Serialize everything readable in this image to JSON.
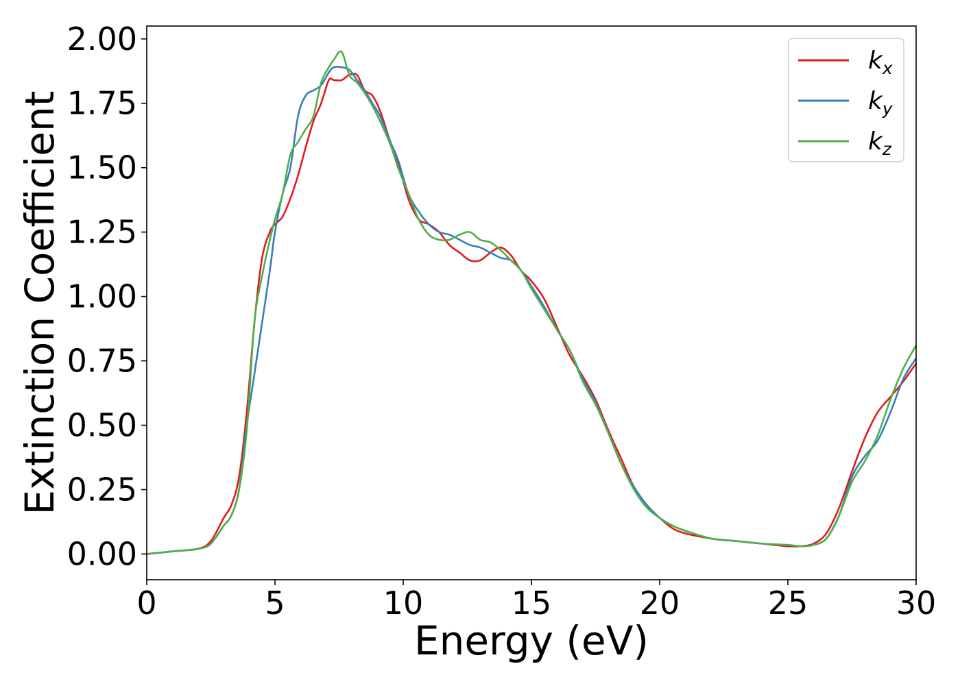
{
  "chart_data": {
    "type": "line",
    "title": "",
    "xlabel": "Energy (eV)",
    "ylabel": "Extinction Coefficient",
    "xlim": [
      0,
      30
    ],
    "ylim": [
      -0.1,
      2.05
    ],
    "x_ticks": [
      "0",
      "5",
      "10",
      "15",
      "20",
      "25",
      "30"
    ],
    "y_ticks": [
      "0.00",
      "0.25",
      "0.50",
      "0.75",
      "1.00",
      "1.25",
      "1.50",
      "1.75",
      "2.00"
    ],
    "grid": false,
    "legend_position": "top-right",
    "series": [
      {
        "name": "k",
        "subscript": "x",
        "color": "#e41a1c",
        "x": [
          0,
          1,
          2,
          2.5,
          3,
          3.3,
          3.6,
          3.9,
          4.2,
          4.5,
          4.8,
          5,
          5.3,
          5.6,
          5.9,
          6.2,
          6.5,
          6.8,
          7.1,
          7.3,
          7.6,
          7.9,
          8.2,
          8.5,
          8.8,
          9.1,
          9.5,
          9.8,
          10.2,
          10.6,
          11,
          11.4,
          11.8,
          12.2,
          12.6,
          13,
          13.4,
          13.8,
          14.2,
          14.6,
          15,
          15.5,
          16,
          16.5,
          17,
          17.5,
          18,
          18.5,
          19,
          19.5,
          20,
          20.5,
          21,
          22,
          23,
          24,
          25,
          25.5,
          26,
          26.5,
          27,
          27.5,
          28,
          28.5,
          29,
          29.5,
          30
        ],
        "y": [
          0,
          0.01,
          0.02,
          0.05,
          0.14,
          0.19,
          0.3,
          0.55,
          0.9,
          1.15,
          1.25,
          1.28,
          1.31,
          1.38,
          1.47,
          1.58,
          1.68,
          1.75,
          1.84,
          1.84,
          1.84,
          1.86,
          1.86,
          1.8,
          1.78,
          1.72,
          1.6,
          1.52,
          1.38,
          1.3,
          1.28,
          1.25,
          1.2,
          1.17,
          1.14,
          1.14,
          1.17,
          1.19,
          1.16,
          1.1,
          1.06,
          0.99,
          0.88,
          0.77,
          0.69,
          0.6,
          0.48,
          0.37,
          0.26,
          0.19,
          0.14,
          0.1,
          0.08,
          0.06,
          0.05,
          0.04,
          0.03,
          0.03,
          0.04,
          0.08,
          0.18,
          0.32,
          0.45,
          0.55,
          0.61,
          0.67,
          0.74
        ]
      },
      {
        "name": "k",
        "subscript": "y",
        "color": "#377eb8",
        "x": [
          0,
          1,
          2,
          2.5,
          3,
          3.3,
          3.6,
          3.9,
          4.2,
          4.5,
          4.8,
          5,
          5.3,
          5.6,
          5.9,
          6.2,
          6.5,
          6.8,
          7.1,
          7.3,
          7.6,
          7.9,
          8.2,
          8.5,
          8.8,
          9.1,
          9.5,
          9.8,
          10.2,
          10.6,
          11,
          11.4,
          11.8,
          12.2,
          12.6,
          13,
          13.4,
          13.8,
          14.2,
          14.6,
          15,
          15.5,
          16,
          16.5,
          17,
          17.5,
          18,
          18.5,
          19,
          19.5,
          20,
          20.5,
          21,
          22,
          23,
          24,
          25,
          25.5,
          26,
          26.5,
          27,
          27.5,
          28,
          28.5,
          29,
          29.5,
          30
        ],
        "y": [
          0,
          0.01,
          0.02,
          0.04,
          0.11,
          0.15,
          0.25,
          0.5,
          0.7,
          0.9,
          1.1,
          1.25,
          1.4,
          1.5,
          1.7,
          1.78,
          1.8,
          1.82,
          1.87,
          1.89,
          1.89,
          1.88,
          1.84,
          1.8,
          1.75,
          1.7,
          1.6,
          1.53,
          1.4,
          1.33,
          1.28,
          1.25,
          1.24,
          1.22,
          1.2,
          1.19,
          1.17,
          1.15,
          1.14,
          1.1,
          1.04,
          0.96,
          0.87,
          0.79,
          0.68,
          0.59,
          0.47,
          0.35,
          0.26,
          0.19,
          0.14,
          0.11,
          0.09,
          0.06,
          0.05,
          0.04,
          0.035,
          0.03,
          0.035,
          0.06,
          0.15,
          0.3,
          0.38,
          0.44,
          0.55,
          0.68,
          0.76
        ]
      },
      {
        "name": "k",
        "subscript": "z",
        "color": "#4daf4a",
        "x": [
          0,
          1,
          2,
          2.5,
          3,
          3.3,
          3.6,
          3.9,
          4.2,
          4.5,
          4.8,
          5,
          5.3,
          5.6,
          5.9,
          6.2,
          6.5,
          6.8,
          7.1,
          7.3,
          7.6,
          7.9,
          8.2,
          8.5,
          8.8,
          9.1,
          9.5,
          9.8,
          10.2,
          10.6,
          11,
          11.4,
          11.8,
          12.2,
          12.6,
          13,
          13.4,
          13.8,
          14.2,
          14.6,
          15,
          15.5,
          16,
          16.5,
          17,
          17.5,
          18,
          18.5,
          19,
          19.5,
          20,
          20.5,
          21,
          22,
          23,
          24,
          25,
          25.5,
          26,
          26.5,
          27,
          27.5,
          28,
          28.5,
          29,
          29.5,
          30
        ],
        "y": [
          0,
          0.01,
          0.02,
          0.04,
          0.11,
          0.15,
          0.25,
          0.48,
          0.9,
          1.08,
          1.22,
          1.3,
          1.4,
          1.55,
          1.6,
          1.65,
          1.7,
          1.83,
          1.89,
          1.92,
          1.95,
          1.86,
          1.83,
          1.79,
          1.74,
          1.68,
          1.59,
          1.5,
          1.4,
          1.3,
          1.24,
          1.22,
          1.22,
          1.24,
          1.25,
          1.22,
          1.21,
          1.18,
          1.14,
          1.1,
          1.03,
          0.95,
          0.87,
          0.79,
          0.67,
          0.58,
          0.47,
          0.35,
          0.25,
          0.18,
          0.14,
          0.11,
          0.09,
          0.06,
          0.05,
          0.04,
          0.035,
          0.03,
          0.035,
          0.06,
          0.15,
          0.28,
          0.36,
          0.46,
          0.6,
          0.72,
          0.81
        ]
      }
    ]
  }
}
